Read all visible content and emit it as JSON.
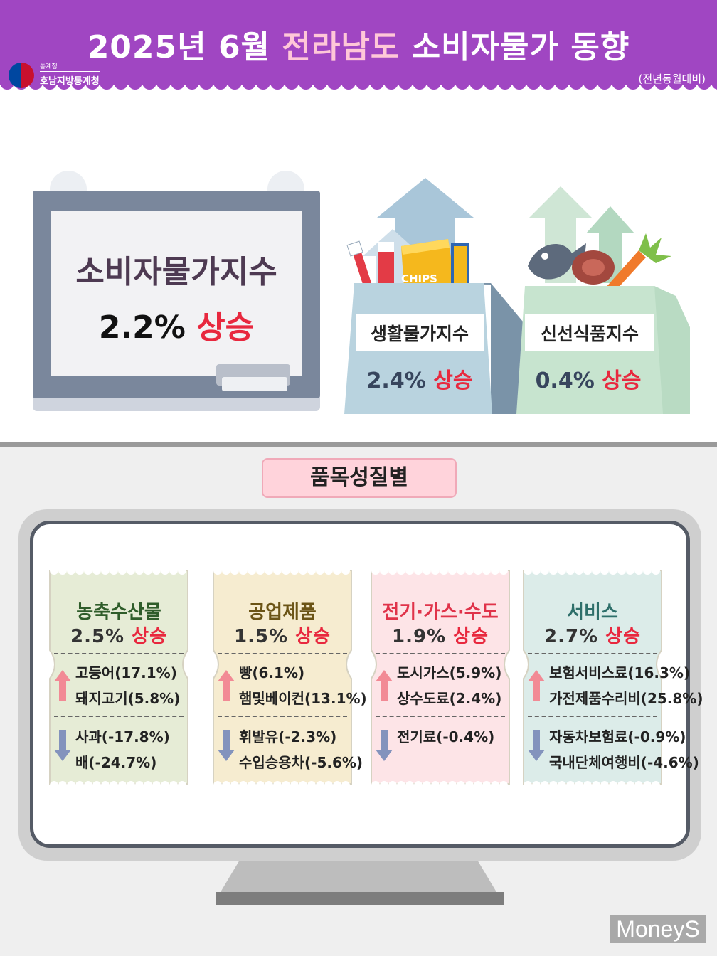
{
  "header": {
    "title_pre": "2025년 6월 ",
    "title_region": "전라남도",
    "title_post": " 소비자물가 동향",
    "logo_sub": "통계청",
    "logo_name": "호남지방통계청",
    "basis": "(전년동월대비)"
  },
  "headline": {
    "label": "소비자물가지수",
    "value": "2.2%",
    "direction": "상승"
  },
  "indices": [
    {
      "label": "생활물가지수",
      "value": "2.4%",
      "direction": "상승"
    },
    {
      "label": "신선식품지수",
      "value": "0.4%",
      "direction": "상승"
    }
  ],
  "chips_text": "CHIPS",
  "section_title": "품목성질별",
  "categories": [
    {
      "name": "농축수산물",
      "value": "2.5%",
      "direction": "상승",
      "name_color": "#2f5d2a",
      "card_color": "#e6ecd6",
      "up": [
        "고등어(17.1%)",
        "돼지고기(5.8%)"
      ],
      "down": [
        "사과(-17.8%)",
        "배(-24.7%)"
      ]
    },
    {
      "name": "공업제품",
      "value": "1.5%",
      "direction": "상승",
      "name_color": "#6b5416",
      "card_color": "#f6ecd0",
      "up": [
        "빵(6.1%)",
        "햄및베이컨(13.1%)"
      ],
      "down": [
        "휘발유(-2.3%)",
        "수입승용차(-5.6%)"
      ]
    },
    {
      "name": "전기·가스·수도",
      "value": "1.9%",
      "direction": "상승",
      "name_color": "#e0334a",
      "card_color": "#fde4e7",
      "up": [
        "도시가스(5.9%)",
        "상수도료(2.4%)"
      ],
      "down": [
        "전기료(-0.4%)"
      ]
    },
    {
      "name": "서비스",
      "value": "2.7%",
      "direction": "상승",
      "name_color": "#2e6f6a",
      "card_color": "#dcece9",
      "up": [
        "보험서비스료(16.3%)",
        "가전제품수리비(25.8%)"
      ],
      "down": [
        "자동차보험료(-0.9%)",
        "국내단체여행비(-4.6%)"
      ]
    }
  ],
  "watermark": "MoneyS",
  "colors": {
    "header": "#a046c2",
    "up": "#e8283e",
    "up_arrow": "#f28a95",
    "down_arrow": "#8393bd"
  }
}
